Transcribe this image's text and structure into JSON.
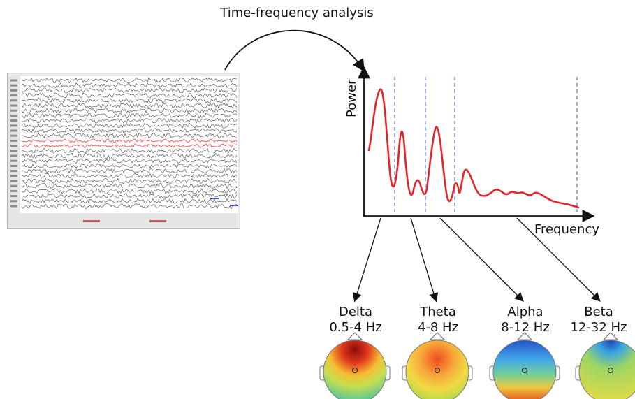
{
  "title": "Time-frequency analysis",
  "spectrum": {
    "y_label": "Power",
    "x_label": "Frequency",
    "line_color": "#e3262b",
    "divider_color": "#3a53c8"
  },
  "bands": [
    {
      "name": "Delta",
      "range": "0.5-4 Hz"
    },
    {
      "name": "Theta",
      "range": "4-8 Hz"
    },
    {
      "name": "Alpha",
      "range": "8-12 Hz"
    },
    {
      "name": "Beta",
      "range": "12-32 Hz"
    }
  ],
  "eeg_trace_highlight_color": "#ee5555",
  "topomap_colors": {
    "high": "#b10d0d",
    "mid_high": "#f4d23c",
    "mid": "#74d080",
    "low": "#2f72d8"
  }
}
